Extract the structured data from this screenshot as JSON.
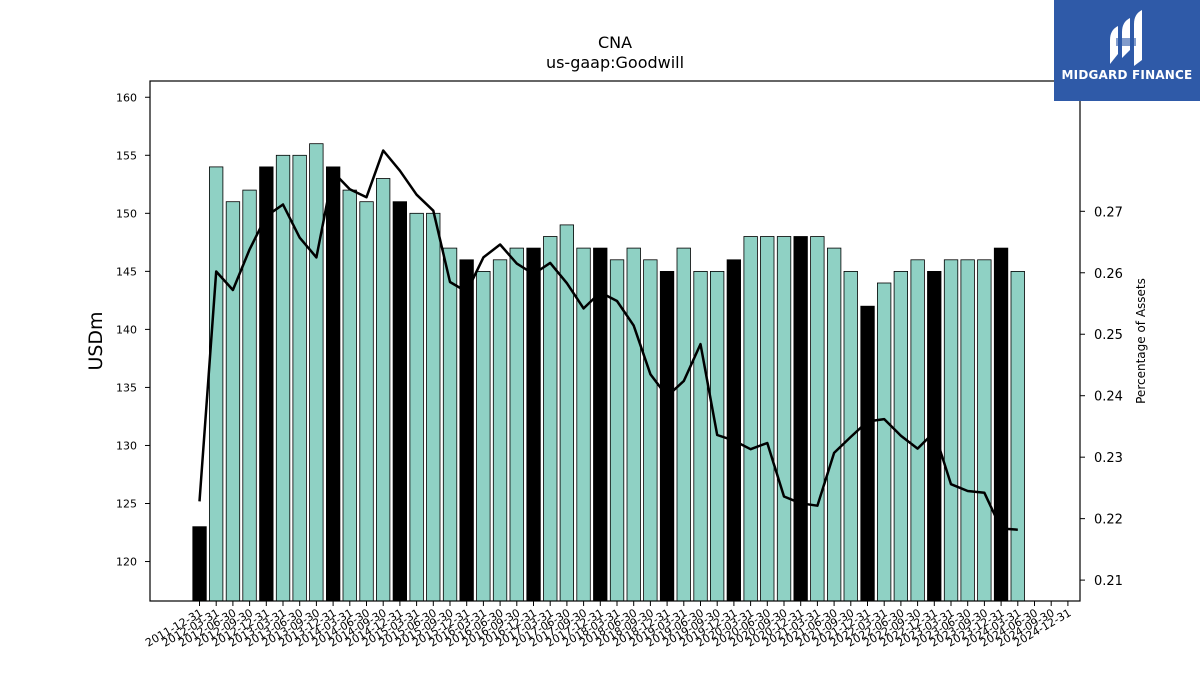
{
  "chart_data": {
    "type": "bar",
    "title": "CNA",
    "subtitle": "us-gaap:Goodwill",
    "ylabel": "USDm",
    "y2label": "Percentage of Assets",
    "ylim": [
      116.6,
      161.4
    ],
    "y2lim": [
      0.2066,
      0.2912
    ],
    "yticks": [
      120,
      125,
      130,
      135,
      140,
      145,
      150,
      155,
      160
    ],
    "y2ticks": [
      0.21,
      0.22,
      0.23,
      0.24,
      0.25,
      0.26,
      0.27
    ],
    "colors": {
      "bar": "#8fd1c4",
      "bar_year_end": "#000000",
      "line": "#000000"
    },
    "categories": [
      "2011-12-31",
      "2012-03-31",
      "2012-06-30",
      "2012-09-30",
      "2012-12-31",
      "2013-03-31",
      "2013-06-30",
      "2013-09-30",
      "2013-12-31",
      "2014-03-31",
      "2014-06-30",
      "2014-09-30",
      "2014-12-31",
      "2015-03-31",
      "2015-06-30",
      "2015-09-30",
      "2015-12-31",
      "2016-03-31",
      "2016-06-30",
      "2016-09-30",
      "2016-12-31",
      "2017-03-31",
      "2017-06-30",
      "2017-09-30",
      "2017-12-31",
      "2018-03-31",
      "2018-06-30",
      "2018-09-30",
      "2018-12-31",
      "2019-03-31",
      "2019-06-30",
      "2019-09-30",
      "2019-12-31",
      "2020-03-31",
      "2020-06-30",
      "2020-09-30",
      "2020-12-31",
      "2021-03-31",
      "2021-06-30",
      "2021-09-30",
      "2021-12-31",
      "2022-03-31",
      "2022-06-30",
      "2022-09-30",
      "2022-12-31",
      "2023-03-31",
      "2023-06-30",
      "2023-09-30",
      "2023-12-31",
      "2024-03-31",
      "2024-06-30",
      "2024-09-30",
      "2024-12-31"
    ],
    "tick_labels": [
      "2011-12-31",
      "2012-03-31",
      "2012-06-30",
      "2012-09-30",
      "2012-12-31",
      "2013-03-31",
      "2013-06-30",
      "2013-09-30",
      "2013-12-31",
      "2014-03-31",
      "2014-06-30",
      "2014-09-30",
      "2014-12-31",
      "2015-03-31",
      "2015-06-30",
      "2015-09-30",
      "2015-12-31",
      "2016-03-31",
      "2016-06-30",
      "2016-09-30",
      "2016-12-31",
      "2017-03-31",
      "2017-06-30",
      "2017-09-30",
      "2017-12-31",
      "2018-03-31",
      "2018-06-30",
      "2018-09-30",
      "2018-12-31",
      "2019-03-31",
      "2019-06-30",
      "2019-09-30",
      "2019-12-31",
      "2020-03-31",
      "2020-06-30",
      "2020-09-30",
      "2020-12-31",
      "2021-03-31",
      "2021-06-30",
      "2021-09-30",
      "2021-12-31",
      "2022-03-31",
      "2022-06-30",
      "2022-09-30",
      "2022-12-31",
      "2023-03-31",
      "2023-06-30",
      "2023-09-30",
      "2023-12-31",
      "2024-03-31",
      "2024-06-30",
      "2024-09-30",
      "2024-12-31"
    ],
    "series": [
      {
        "values": [
          123,
          154,
          151,
          152,
          154,
          155,
          155,
          156,
          154,
          152,
          151,
          153,
          151,
          150,
          150,
          147,
          146,
          145,
          146,
          147,
          147,
          148,
          149,
          147,
          147,
          146,
          147,
          146,
          145,
          147,
          145,
          145,
          146,
          148,
          148,
          148,
          148,
          148,
          147,
          145,
          142,
          144,
          145,
          146,
          145,
          146,
          146,
          146,
          147,
          145,
          null,
          null,
          null
        ]
      },
      {
        "values": [
          0.2228,
          0.2602,
          0.2572,
          0.2638,
          0.2692,
          0.2711,
          0.2657,
          0.2625,
          0.2764,
          0.2736,
          0.2723,
          0.2799,
          0.2766,
          0.2727,
          0.2701,
          0.2585,
          0.2569,
          0.2625,
          0.2646,
          0.2615,
          0.2598,
          0.2616,
          0.2583,
          0.2542,
          0.2568,
          0.2554,
          0.2514,
          0.2435,
          0.2399,
          0.2424,
          0.2484,
          0.2336,
          0.2327,
          0.2313,
          0.2323,
          0.2236,
          0.2225,
          0.2221,
          0.2307,
          0.2333,
          0.2358,
          0.2362,
          0.2335,
          0.2314,
          0.2341,
          0.2256,
          0.2245,
          0.2242,
          0.2184,
          0.2182,
          null,
          null,
          null
        ]
      }
    ]
  },
  "logo": {
    "text": "MIDGARD FINANCE"
  }
}
